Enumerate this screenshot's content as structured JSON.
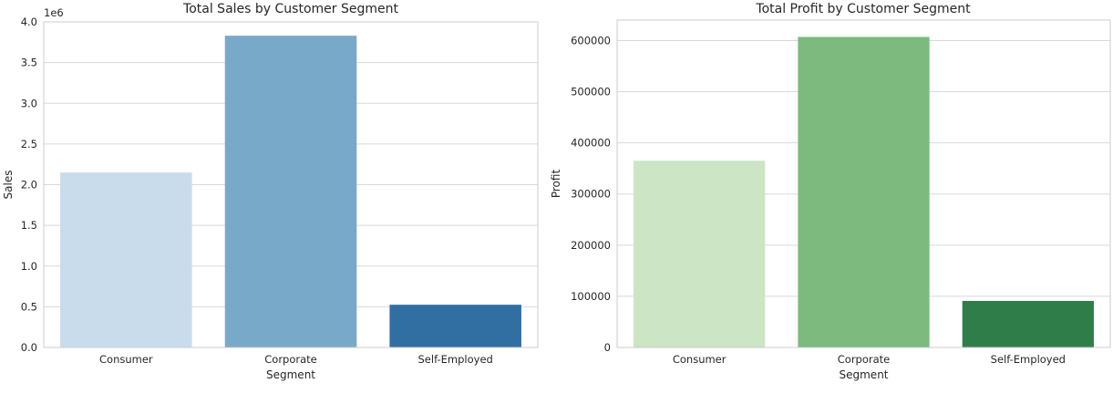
{
  "chart_data": [
    {
      "type": "bar",
      "title": "Total Sales by Customer Segment",
      "xlabel": "Segment",
      "ylabel": "Sales",
      "offset_label": "1e6",
      "categories": [
        "Consumer",
        "Corporate",
        "Self-Employed"
      ],
      "values": [
        2150000,
        3830000,
        525000
      ],
      "ylim": [
        0,
        4000000
      ],
      "yticks": [
        0,
        500000,
        1000000,
        1500000,
        2000000,
        2500000,
        3000000,
        3500000,
        4000000
      ],
      "ytick_labels": [
        "0.0",
        "0.5",
        "1.0",
        "1.5",
        "2.0",
        "2.5",
        "3.0",
        "3.5",
        "4.0"
      ],
      "colors": [
        "#c9dcec",
        "#78a9c9",
        "#316fa3"
      ],
      "grid": true
    },
    {
      "type": "bar",
      "title": "Total Profit by Customer Segment",
      "xlabel": "Segment",
      "ylabel": "Profit",
      "categories": [
        "Consumer",
        "Corporate",
        "Self-Employed"
      ],
      "values": [
        365000,
        607000,
        91000
      ],
      "ylim": [
        0,
        640000
      ],
      "yticks": [
        0,
        100000,
        200000,
        300000,
        400000,
        500000,
        600000
      ],
      "ytick_labels": [
        "0",
        "100000",
        "200000",
        "300000",
        "400000",
        "500000",
        "600000"
      ],
      "colors": [
        "#cbe5c5",
        "#7cba7e",
        "#2f7e49"
      ],
      "grid": true
    }
  ]
}
